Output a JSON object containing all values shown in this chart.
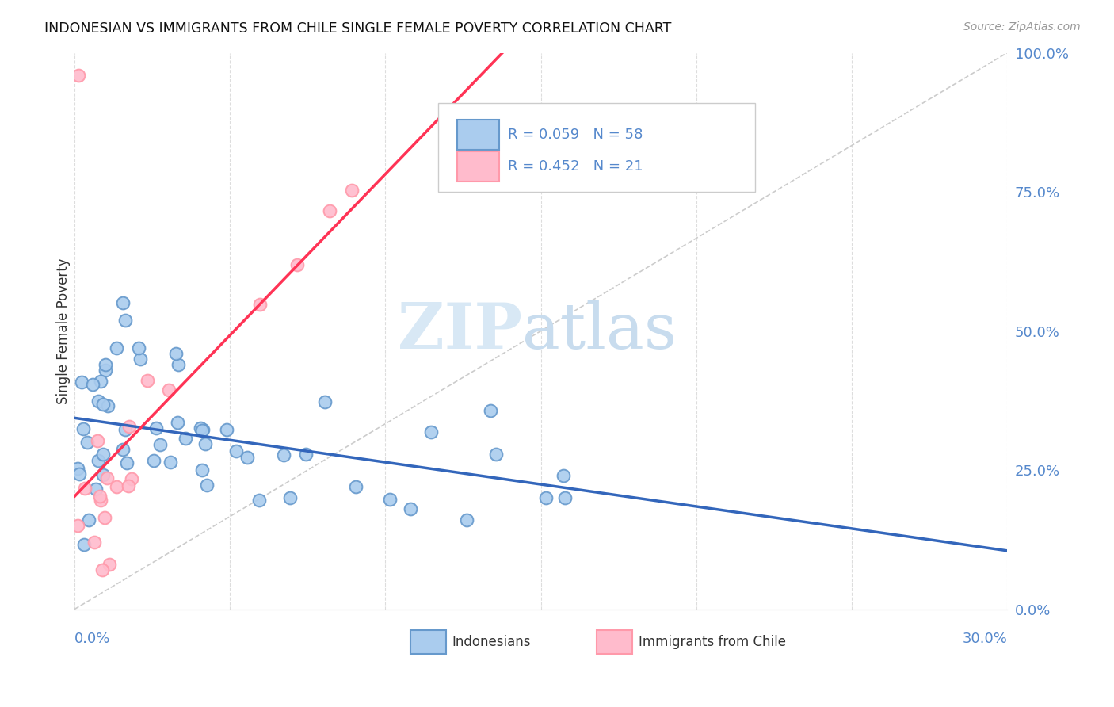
{
  "title": "INDONESIAN VS IMMIGRANTS FROM CHILE SINGLE FEMALE POVERTY CORRELATION CHART",
  "source": "Source: ZipAtlas.com",
  "ylabel": "Single Female Poverty",
  "yticks": [
    "0.0%",
    "25.0%",
    "50.0%",
    "75.0%",
    "100.0%"
  ],
  "ytick_vals": [
    0.0,
    0.25,
    0.5,
    0.75,
    1.0
  ],
  "xmin": 0.0,
  "xmax": 0.3,
  "ymin": 0.0,
  "ymax": 1.0,
  "blue_color": "#6699CC",
  "pink_color": "#FF99AA",
  "blue_fill": "#AACCEE",
  "pink_fill": "#FFBBCC",
  "legend_blue_label": "Indonesians",
  "legend_pink_label": "Immigrants from Chile",
  "R_blue": 0.059,
  "N_blue": 58,
  "R_pink": 0.452,
  "N_pink": 21,
  "watermark_zip": "ZIP",
  "watermark_atlas": "atlas",
  "watermark_color": "#D8E8F5",
  "grid_color": "#DDDDDD",
  "trend_blue_color": "#3366BB",
  "trend_pink_color": "#FF3355",
  "diag_color": "#CCCCCC",
  "title_color": "#111111",
  "source_color": "#999999",
  "axis_label_color": "#333333",
  "tick_color": "#5588CC"
}
